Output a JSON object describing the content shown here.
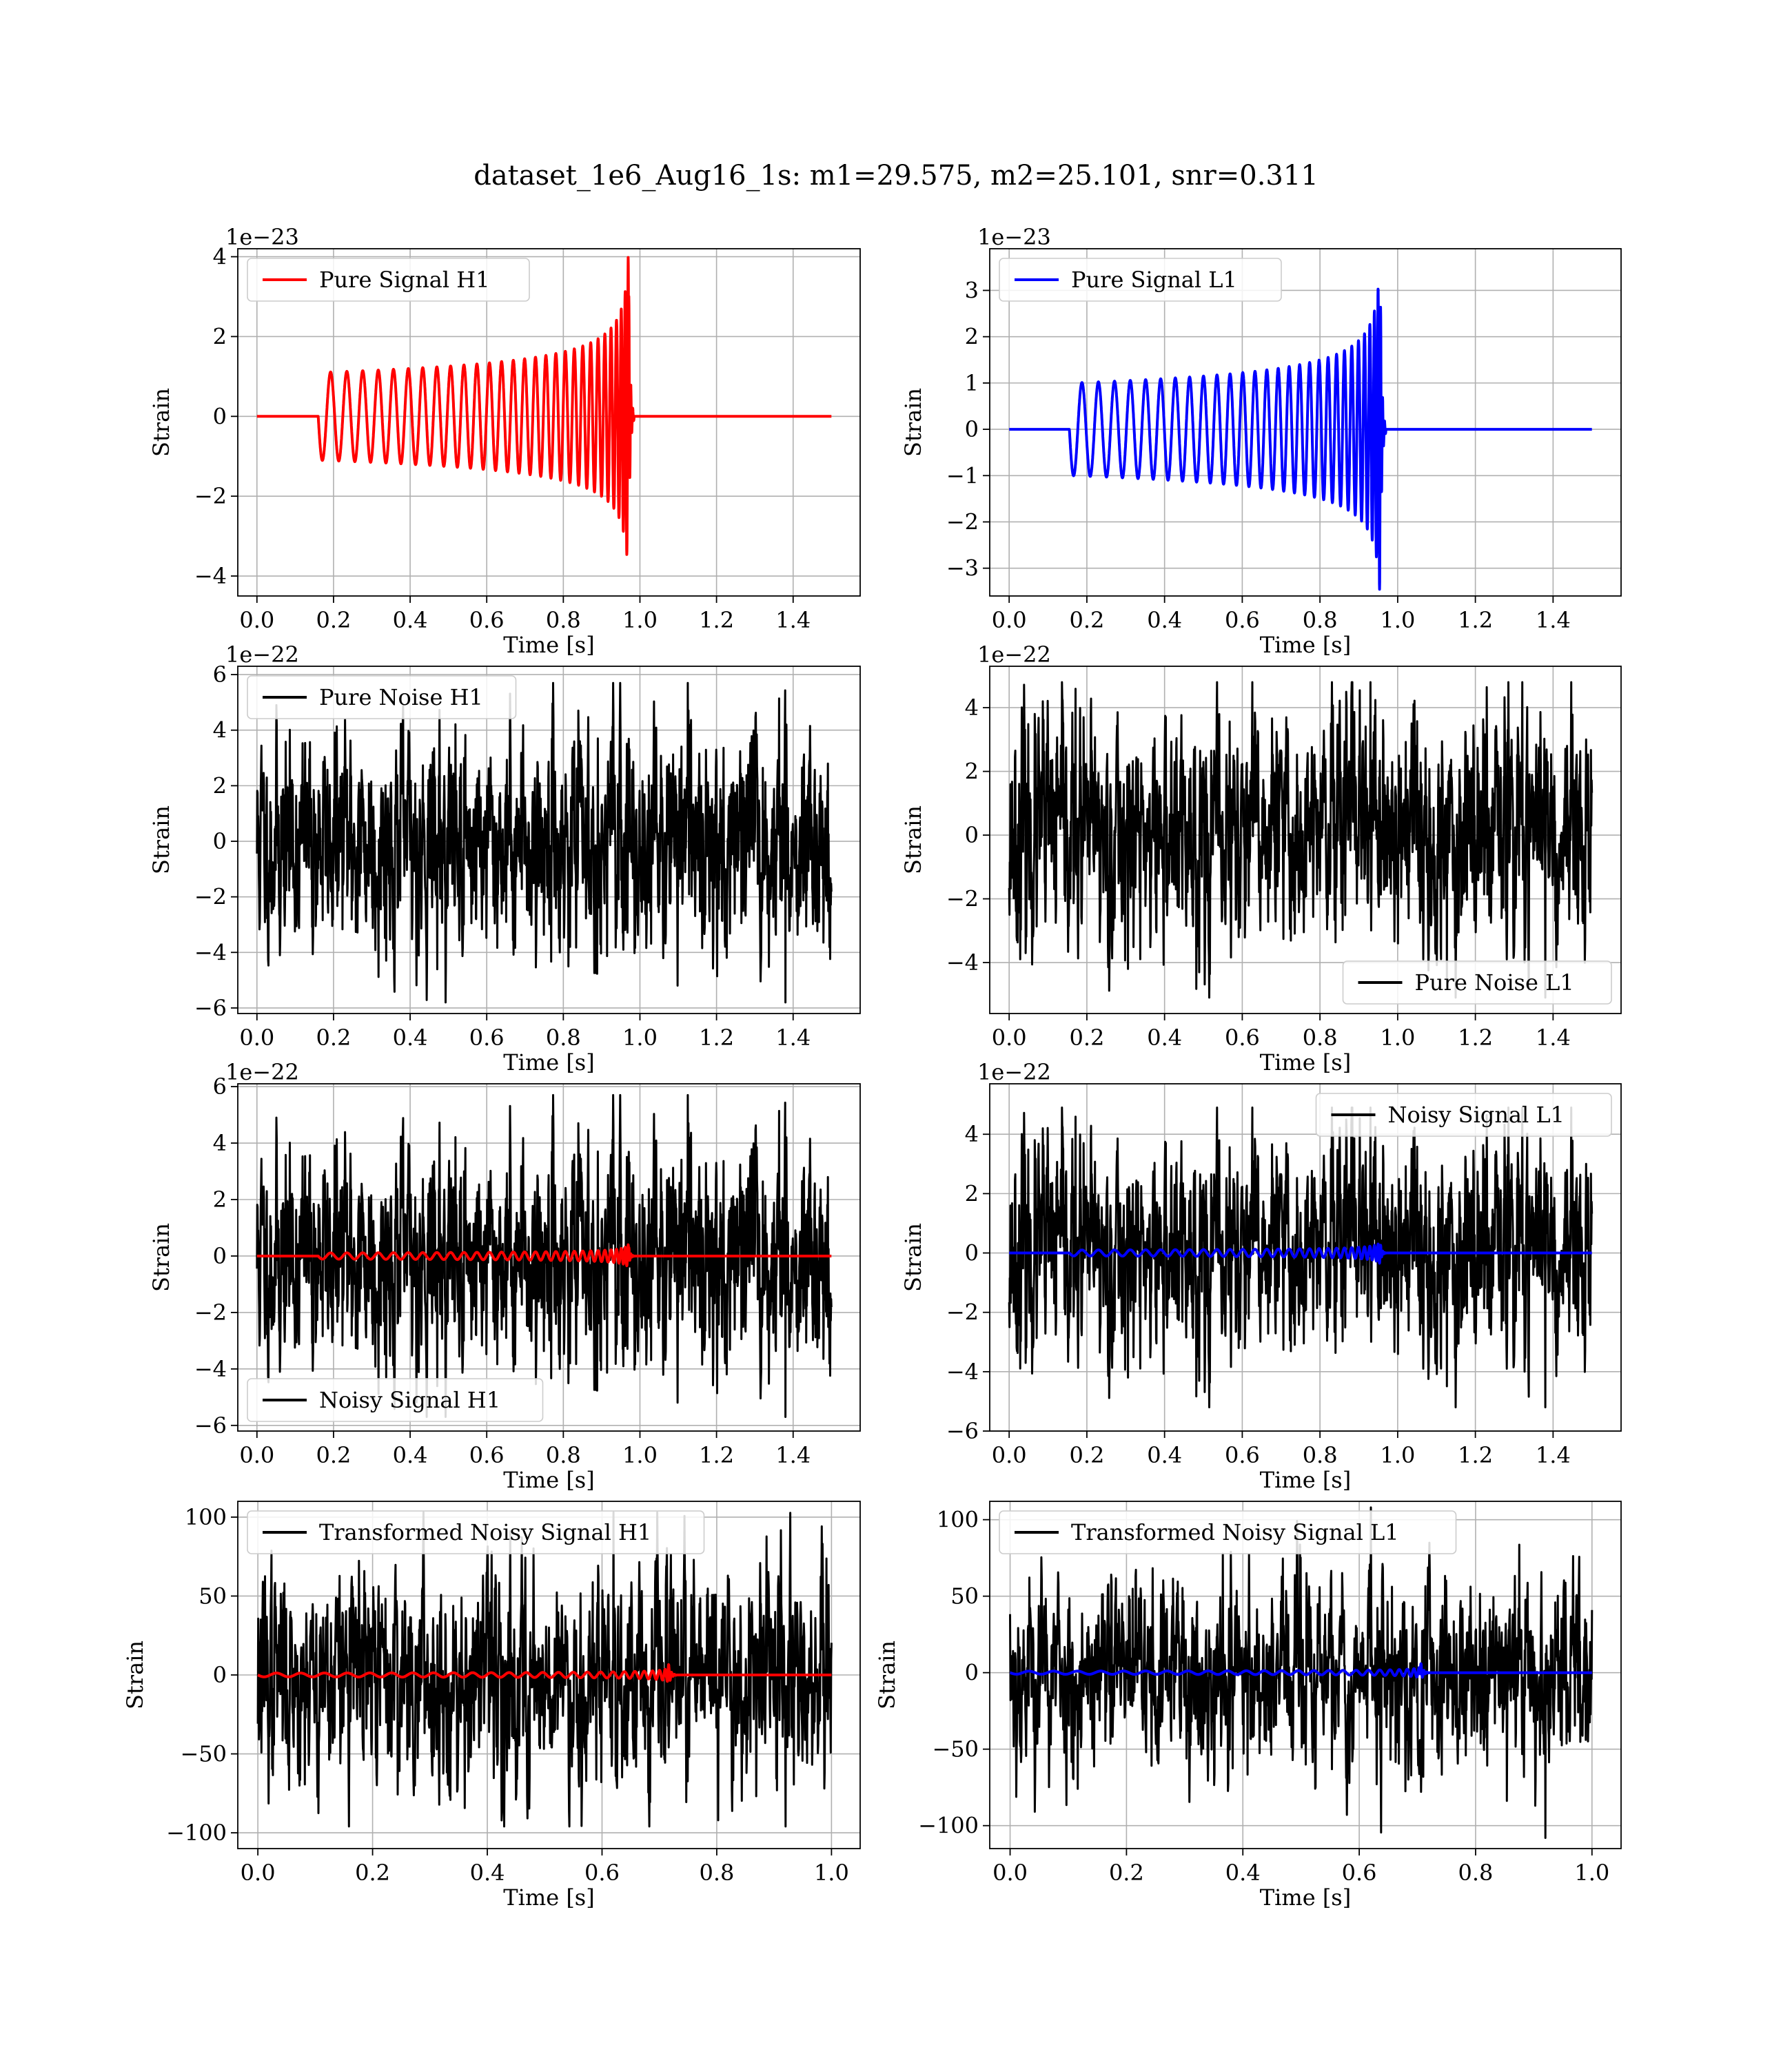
{
  "figure": {
    "title": "dataset_1e6_Aug16_1s: m1=29.575, m2=25.101, snr=0.311"
  },
  "chart_data": [
    {
      "id": "pure-signal-h1",
      "type": "line",
      "xlabel": "Time [s]",
      "ylabel": "Strain",
      "offset_text": "1e−23",
      "xlim": [
        -0.05,
        1.575
      ],
      "ylim": [
        -4.5,
        4.2
      ],
      "xticks": [
        0.0,
        0.2,
        0.4,
        0.6,
        0.8,
        1.0,
        1.2,
        1.4
      ],
      "xtick_labels": [
        "0.0",
        "0.2",
        "0.4",
        "0.6",
        "0.8",
        "1.0",
        "1.2",
        "1.4"
      ],
      "yticks": [
        -4,
        -2,
        0,
        2,
        4
      ],
      "ytick_labels": [
        "−4",
        "−2",
        "0",
        "2",
        "4"
      ],
      "legend": {
        "label": "Pure Signal H1",
        "color": "#ff0000",
        "placement": "upper-left"
      },
      "series": [
        {
          "name": "Pure Signal H1",
          "color": "#ff0000",
          "kind": "chirp",
          "t_start": 0.16,
          "t_merge": 0.97,
          "t_end": 1.5,
          "amp_start": 1.1,
          "amp_peak": 4.1,
          "x_range": [
            0.0,
            1.5
          ]
        }
      ],
      "grid": true
    },
    {
      "id": "pure-signal-l1",
      "type": "line",
      "xlabel": "Time [s]",
      "ylabel": "Strain",
      "offset_text": "1e−23",
      "xlim": [
        -0.05,
        1.575
      ],
      "ylim": [
        -3.6,
        3.9
      ],
      "xticks": [
        0.0,
        0.2,
        0.4,
        0.6,
        0.8,
        1.0,
        1.2,
        1.4
      ],
      "xtick_labels": [
        "0.0",
        "0.2",
        "0.4",
        "0.6",
        "0.8",
        "1.0",
        "1.2",
        "1.4"
      ],
      "yticks": [
        -3,
        -2,
        -1,
        0,
        1,
        2,
        3
      ],
      "ytick_labels": [
        "−3",
        "−2",
        "−1",
        "0",
        "1",
        "2",
        "3"
      ],
      "legend": {
        "label": "Pure Signal L1",
        "color": "#0000ff",
        "placement": "upper-left"
      },
      "series": [
        {
          "name": "Pure Signal L1",
          "color": "#0000ff",
          "kind": "chirp",
          "t_start": 0.155,
          "t_merge": 0.955,
          "t_end": 1.5,
          "amp_start": 1.0,
          "amp_peak": 3.6,
          "x_range": [
            0.0,
            1.5
          ]
        }
      ],
      "grid": true
    },
    {
      "id": "pure-noise-h1",
      "type": "line",
      "xlabel": "Time [s]",
      "ylabel": "Strain",
      "offset_text": "1e−22",
      "xlim": [
        -0.05,
        1.575
      ],
      "ylim": [
        -6.2,
        6.3
      ],
      "xticks": [
        0.0,
        0.2,
        0.4,
        0.6,
        0.8,
        1.0,
        1.2,
        1.4
      ],
      "xtick_labels": [
        "0.0",
        "0.2",
        "0.4",
        "0.6",
        "0.8",
        "1.0",
        "1.2",
        "1.4"
      ],
      "yticks": [
        -6,
        -4,
        -2,
        0,
        2,
        4,
        6
      ],
      "ytick_labels": [
        "−6",
        "−4",
        "−2",
        "0",
        "2",
        "4",
        "6"
      ],
      "legend": {
        "label": "Pure Noise H1",
        "color": "#000000",
        "placement": "upper-left"
      },
      "series": [
        {
          "name": "Pure Noise H1",
          "color": "#000000",
          "kind": "noise",
          "x_range": [
            0.0,
            1.5
          ],
          "n": 1800,
          "sigma": 1.6,
          "peak_max": 5.7,
          "peak_min": -5.8,
          "seed": 11
        }
      ],
      "grid": true
    },
    {
      "id": "pure-noise-l1",
      "type": "line",
      "xlabel": "Time [s]",
      "ylabel": "Strain",
      "offset_text": "1e−22",
      "xlim": [
        -0.05,
        1.575
      ],
      "ylim": [
        -5.6,
        5.3
      ],
      "xticks": [
        0.0,
        0.2,
        0.4,
        0.6,
        0.8,
        1.0,
        1.2,
        1.4
      ],
      "xtick_labels": [
        "0.0",
        "0.2",
        "0.4",
        "0.6",
        "0.8",
        "1.0",
        "1.2",
        "1.4"
      ],
      "yticks": [
        -4,
        -2,
        0,
        2,
        4
      ],
      "ytick_labels": [
        "−4",
        "−2",
        "0",
        "2",
        "4"
      ],
      "legend": {
        "label": "Pure Noise L1",
        "color": "#000000",
        "placement": "lower-right"
      },
      "series": [
        {
          "name": "Pure Noise L1",
          "color": "#000000",
          "kind": "noise",
          "x_range": [
            0.0,
            1.5
          ],
          "n": 1800,
          "sigma": 1.5,
          "peak_max": 4.8,
          "peak_min": -5.1,
          "seed": 23
        }
      ],
      "grid": true
    },
    {
      "id": "noisy-signal-h1",
      "type": "line",
      "xlabel": "Time [s]",
      "ylabel": "Strain",
      "offset_text": "1e−22",
      "xlim": [
        -0.05,
        1.575
      ],
      "ylim": [
        -6.2,
        6.1
      ],
      "xticks": [
        0.0,
        0.2,
        0.4,
        0.6,
        0.8,
        1.0,
        1.2,
        1.4
      ],
      "xtick_labels": [
        "0.0",
        "0.2",
        "0.4",
        "0.6",
        "0.8",
        "1.0",
        "1.2",
        "1.4"
      ],
      "yticks": [
        -6,
        -4,
        -2,
        0,
        2,
        4,
        6
      ],
      "ytick_labels": [
        "−6",
        "−4",
        "−2",
        "0",
        "2",
        "4",
        "6"
      ],
      "legend": {
        "label": "Noisy Signal H1",
        "color": "#000000",
        "placement": "lower-left"
      },
      "series": [
        {
          "name": "Noisy Signal H1",
          "color": "#000000",
          "kind": "noise",
          "x_range": [
            0.0,
            1.5
          ],
          "n": 1800,
          "sigma": 1.6,
          "peak_max": 5.7,
          "peak_min": -5.7,
          "seed": 11
        },
        {
          "color": "#ff0000",
          "kind": "chirp",
          "t_start": 0.16,
          "t_merge": 0.97,
          "t_end": 1.5,
          "amp_start": 0.11,
          "amp_peak": 0.41,
          "x_range": [
            0.0,
            1.5
          ]
        }
      ],
      "grid": true
    },
    {
      "id": "noisy-signal-l1",
      "type": "line",
      "xlabel": "Time [s]",
      "ylabel": "Strain",
      "offset_text": "1e−22",
      "xlim": [
        -0.05,
        1.575
      ],
      "ylim": [
        -6.0,
        5.7
      ],
      "xticks": [
        0.0,
        0.2,
        0.4,
        0.6,
        0.8,
        1.0,
        1.2,
        1.4
      ],
      "xtick_labels": [
        "0.0",
        "0.2",
        "0.4",
        "0.6",
        "0.8",
        "1.0",
        "1.2",
        "1.4"
      ],
      "yticks": [
        -6,
        -4,
        -2,
        0,
        2,
        4
      ],
      "ytick_labels": [
        "−6",
        "−4",
        "−2",
        "0",
        "2",
        "4"
      ],
      "legend": {
        "label": "Noisy Signal L1",
        "color": "#000000",
        "placement": "upper-right"
      },
      "series": [
        {
          "name": "Noisy Signal L1",
          "color": "#000000",
          "kind": "noise",
          "x_range": [
            0.0,
            1.5
          ],
          "n": 1800,
          "sigma": 1.5,
          "peak_max": 4.9,
          "peak_min": -5.2,
          "seed": 23
        },
        {
          "color": "#0000ff",
          "kind": "chirp",
          "t_start": 0.155,
          "t_merge": 0.955,
          "t_end": 1.5,
          "amp_start": 0.1,
          "amp_peak": 0.36,
          "x_range": [
            0.0,
            1.5
          ]
        }
      ],
      "grid": true
    },
    {
      "id": "transformed-noisy-signal-h1",
      "type": "line",
      "xlabel": "Time [s]",
      "ylabel": "Strain",
      "offset_text": "",
      "xlim": [
        -0.035,
        1.05
      ],
      "ylim": [
        -110,
        110
      ],
      "xticks": [
        0.0,
        0.2,
        0.4,
        0.6,
        0.8,
        1.0
      ],
      "xtick_labels": [
        "0.0",
        "0.2",
        "0.4",
        "0.6",
        "0.8",
        "1.0"
      ],
      "yticks": [
        -100,
        -50,
        0,
        50,
        100
      ],
      "ytick_labels": [
        "−100",
        "−50",
        "0",
        "50",
        "100"
      ],
      "legend": {
        "label": "Transformed Noisy Signal H1",
        "color": "#000000",
        "placement": "upper-left"
      },
      "series": [
        {
          "name": "Transformed Noisy Signal H1",
          "color": "#000000",
          "kind": "noise",
          "x_range": [
            0.0,
            1.0
          ],
          "n": 1600,
          "sigma": 28,
          "peak_max": 103,
          "peak_min": -96,
          "seed": 37
        },
        {
          "color": "#ff0000",
          "kind": "chirp",
          "t_start": 0.0,
          "t_merge": 0.715,
          "t_end": 1.0,
          "amp_start": 1.2,
          "amp_peak": 9,
          "x_range": [
            0.0,
            1.0
          ]
        }
      ],
      "grid": true
    },
    {
      "id": "transformed-noisy-signal-l1",
      "type": "line",
      "xlabel": "Time [s]",
      "ylabel": "Strain",
      "offset_text": "",
      "xlim": [
        -0.035,
        1.05
      ],
      "ylim": [
        -115,
        112
      ],
      "xticks": [
        0.0,
        0.2,
        0.4,
        0.6,
        0.8,
        1.0
      ],
      "xtick_labels": [
        "0.0",
        "0.2",
        "0.4",
        "0.6",
        "0.8",
        "1.0"
      ],
      "yticks": [
        -100,
        -50,
        0,
        50,
        100
      ],
      "ytick_labels": [
        "−100",
        "−50",
        "0",
        "50",
        "100"
      ],
      "legend": {
        "label": "Transformed Noisy Signal L1",
        "color": "#000000",
        "placement": "upper-left"
      },
      "series": [
        {
          "name": "Transformed Noisy Signal L1",
          "color": "#000000",
          "kind": "noise",
          "x_range": [
            0.0,
            1.0
          ],
          "n": 1600,
          "sigma": 27,
          "peak_max": 108,
          "peak_min": -108,
          "seed": 53
        },
        {
          "color": "#0000ff",
          "kind": "chirp",
          "t_start": 0.0,
          "t_merge": 0.705,
          "t_end": 1.0,
          "amp_start": 1.0,
          "amp_peak": 8,
          "x_range": [
            0.0,
            1.0
          ]
        }
      ],
      "grid": true
    }
  ]
}
